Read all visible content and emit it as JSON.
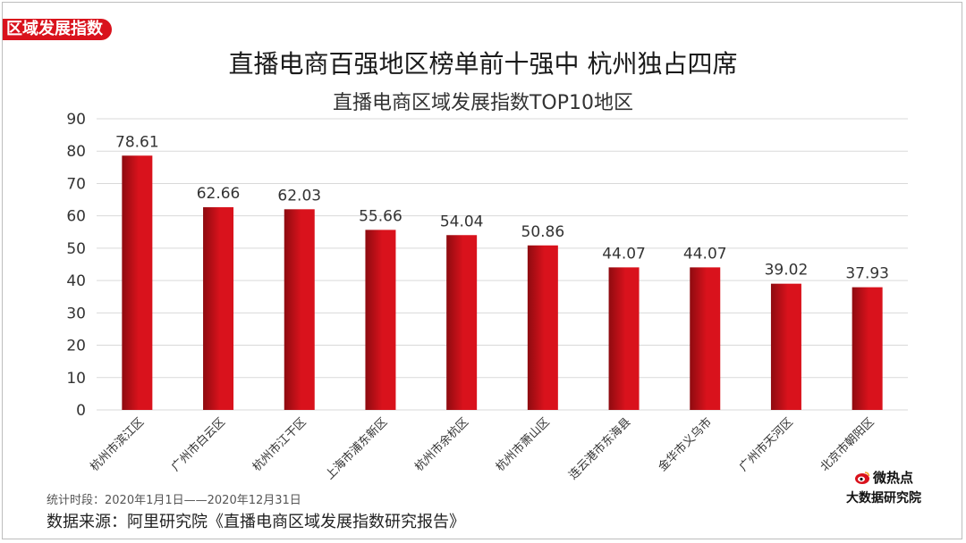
{
  "tag": "区域发展指数",
  "title": "直播电商百强地区榜单前十强中 杭州独占四席",
  "subtitle": "直播电商区域发展指数TOP10地区",
  "note": "统计时段：2020年1月1日——2020年12月31日",
  "source": "数据来源：阿里研究院《直播电商区域发展指数研究报告》",
  "brand": {
    "top": "微热点",
    "bottom": "大数据研究院",
    "icon": "weibo-eye-icon"
  },
  "colors": {
    "bar": "#d9121c",
    "bar_dark": "#8e0b10",
    "grid": "#d9d9d9",
    "accent": "#d9121c"
  },
  "chart_data": {
    "type": "bar",
    "title": "直播电商区域发展指数TOP10地区",
    "xlabel": "",
    "ylabel": "",
    "ylim": [
      0,
      90
    ],
    "yticks": [
      0,
      10,
      20,
      30,
      40,
      50,
      60,
      70,
      80,
      90
    ],
    "grid": true,
    "legend": "none",
    "categories": [
      "杭州市滨江区",
      "广州市白云区",
      "杭州市江干区",
      "上海市浦东新区",
      "杭州市余杭区",
      "杭州市萧山区",
      "连云港市东海县",
      "金华市义乌市",
      "广州市天河区",
      "北京市朝阳区"
    ],
    "values": [
      78.61,
      62.66,
      62.03,
      55.66,
      54.04,
      50.86,
      44.07,
      44.07,
      39.02,
      37.93
    ],
    "value_labels": [
      "78.61",
      "62.66",
      "62.03",
      "55.66",
      "54.04",
      "50.86",
      "44.07",
      "44.07",
      "39.02",
      "37.93"
    ]
  }
}
